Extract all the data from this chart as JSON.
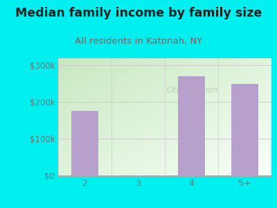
{
  "title": "Median family income by family size",
  "subtitle": "All residents in Katonah, NY",
  "categories": [
    "2",
    "3",
    "4",
    "5+"
  ],
  "values": [
    175000,
    0,
    270000,
    248000
  ],
  "bar_color": "#b8a0cc",
  "background_color": "#00efef",
  "chart_bg_color_topleft": "#c8e8c0",
  "chart_bg_color_bottomright": "#f8fff8",
  "title_color": "#222222",
  "subtitle_color": "#7a6060",
  "tick_label_color": "#5a7a7a",
  "ytick_labels": [
    "$0",
    "$100k",
    "$200k",
    "$300k"
  ],
  "ytick_values": [
    0,
    100000,
    200000,
    300000
  ],
  "ylim": [
    0,
    318000
  ],
  "watermark": "City-Data.com",
  "title_fontsize": 12.5,
  "subtitle_fontsize": 9.5
}
